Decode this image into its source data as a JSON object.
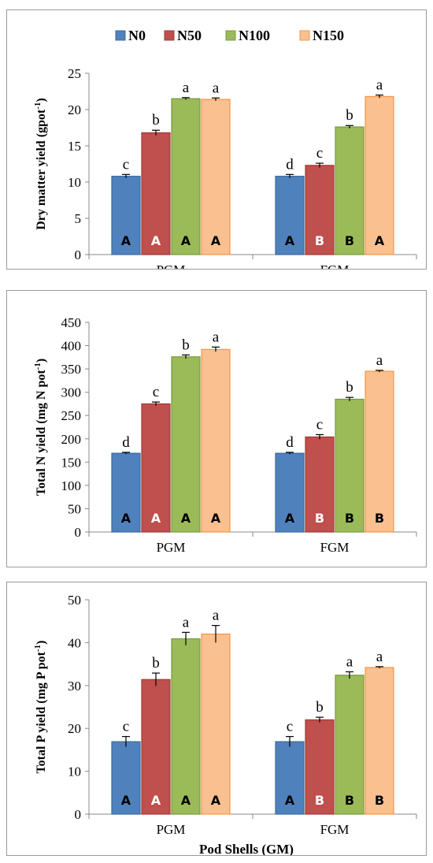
{
  "legend": [
    {
      "label": "N0",
      "color": "#4f81bd",
      "stroke": "#3a6aa0"
    },
    {
      "label": "N50",
      "color": "#c0504d",
      "stroke": "#9c3b38"
    },
    {
      "label": "N100",
      "color": "#9bbb59",
      "stroke": "#789a3c"
    },
    {
      "label": "N150",
      "color": "#fac090",
      "stroke": "#f79646"
    }
  ],
  "xlabel": "Pod Shells (GM)",
  "chart_data": [
    {
      "type": "bar",
      "ylabel_main": "Dry matter yield (gpot",
      "ylabel_sup": "-1",
      "ylabel_tail": ")",
      "categories": [
        "PGM",
        "FGM"
      ],
      "ylim": [
        0,
        25
      ],
      "yticks": [
        0,
        5,
        10,
        15,
        20,
        25
      ],
      "series": [
        {
          "name": "N0",
          "values": [
            10.8,
            10.8
          ],
          "errors": [
            0.25,
            0.25
          ],
          "letters": [
            "c",
            "d"
          ],
          "inner": [
            "A",
            "A"
          ]
        },
        {
          "name": "N50",
          "values": [
            16.8,
            12.3
          ],
          "errors": [
            0.35,
            0.3
          ],
          "letters": [
            "b",
            "c"
          ],
          "inner": [
            "A",
            "B"
          ]
        },
        {
          "name": "N100",
          "values": [
            21.5,
            17.6
          ],
          "errors": [
            0.15,
            0.2
          ],
          "letters": [
            "a",
            "b"
          ],
          "inner": [
            "A",
            "B"
          ]
        },
        {
          "name": "N150",
          "values": [
            21.4,
            21.8
          ],
          "errors": [
            0.2,
            0.2
          ],
          "letters": [
            "a",
            "a"
          ],
          "inner": [
            "A",
            "A"
          ]
        }
      ]
    },
    {
      "type": "bar",
      "ylabel_main": "Total N yield (mg N pot",
      "ylabel_sup": "-1",
      "ylabel_tail": ")",
      "categories": [
        "PGM",
        "FGM"
      ],
      "ylim": [
        0,
        450
      ],
      "yticks": [
        0,
        50,
        100,
        150,
        200,
        250,
        300,
        350,
        400,
        450
      ],
      "series": [
        {
          "name": "N0",
          "values": [
            169,
            169
          ],
          "errors": [
            2,
            2
          ],
          "letters": [
            "d",
            "d"
          ],
          "inner": [
            "A",
            "A"
          ]
        },
        {
          "name": "N50",
          "values": [
            275,
            204
          ],
          "errors": [
            4,
            5
          ],
          "letters": [
            "c",
            "c"
          ],
          "inner": [
            "A",
            "B"
          ]
        },
        {
          "name": "N100",
          "values": [
            376,
            285
          ],
          "errors": [
            4,
            4
          ],
          "letters": [
            "b",
            "b"
          ],
          "inner": [
            "A",
            "B"
          ]
        },
        {
          "name": "N150",
          "values": [
            392,
            345
          ],
          "errors": [
            5,
            2
          ],
          "letters": [
            "a",
            "a"
          ],
          "inner": [
            "A",
            "B"
          ]
        }
      ]
    },
    {
      "type": "bar",
      "ylabel_main": "Total P yield (mg P pot",
      "ylabel_sup": "-1",
      "ylabel_tail": ")",
      "categories": [
        "PGM",
        "FGM"
      ],
      "ylim": [
        0,
        50
      ],
      "yticks": [
        0,
        10,
        20,
        30,
        40,
        50
      ],
      "series": [
        {
          "name": "N0",
          "values": [
            16.9,
            16.9
          ],
          "errors": [
            1.2,
            1.2
          ],
          "letters": [
            "c",
            "c"
          ],
          "inner": [
            "A",
            "A"
          ]
        },
        {
          "name": "N50",
          "values": [
            31.4,
            22.0
          ],
          "errors": [
            1.5,
            0.6
          ],
          "letters": [
            "b",
            "b"
          ],
          "inner": [
            "A",
            "B"
          ]
        },
        {
          "name": "N100",
          "values": [
            40.9,
            32.4
          ],
          "errors": [
            1.5,
            0.8
          ],
          "letters": [
            "a",
            "a"
          ],
          "inner": [
            "A",
            "B"
          ]
        },
        {
          "name": "N150",
          "values": [
            42.0,
            34.2
          ],
          "errors": [
            2.0,
            0.2
          ],
          "letters": [
            "a",
            "a"
          ],
          "inner": [
            "A",
            "B"
          ]
        }
      ]
    }
  ]
}
